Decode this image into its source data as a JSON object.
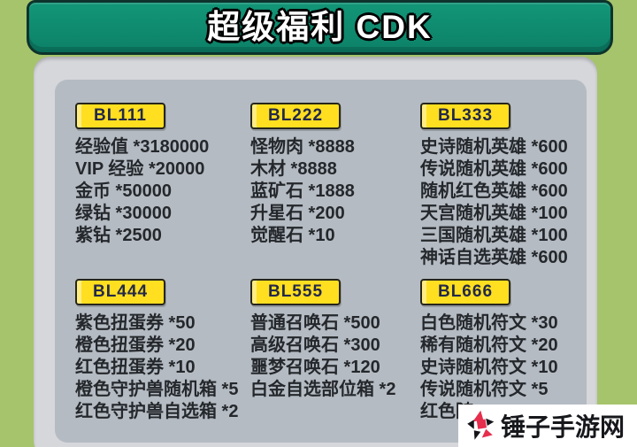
{
  "header": {
    "title": "超级福利 CDK"
  },
  "sections": [
    {
      "code": "BL111",
      "items": [
        "经验值 *3180000",
        "VIP 经验 *20000",
        "金币 *50000",
        "绿钻 *30000",
        "紫钻 *2500"
      ]
    },
    {
      "code": "BL222",
      "items": [
        "怪物肉 *8888",
        "木材 *8888",
        "蓝矿石 *1888",
        "升星石 *200",
        "觉醒石 *10"
      ]
    },
    {
      "code": "BL333",
      "items": [
        "史诗随机英雄 *600",
        "传说随机英雄 *600",
        "随机红色英雄 *600",
        "天宫随机英雄 *100",
        "三国随机英雄 *100",
        "神话自选英雄 *600"
      ]
    },
    {
      "code": "BL444",
      "items": [
        "紫色扭蛋券 *50",
        "橙色扭蛋券 *20",
        "红色扭蛋券 *10",
        "橙色守护兽随机箱 *5",
        "红色守护兽自选箱 *2"
      ]
    },
    {
      "code": "BL555",
      "items": [
        "普通召唤石 *500",
        "高级召唤石 *300",
        "噩梦召唤石 *120",
        "白金自选部位箱 *2"
      ]
    },
    {
      "code": "BL666",
      "items": [
        "白色随机符文 *30",
        "稀有随机符文 *20",
        "史诗随机符文 *10",
        "传说随机符文 *5",
        "红色随"
      ]
    }
  ],
  "watermark": {
    "site_name": "锤子手游网",
    "logo_icon": "star-logo"
  },
  "colors": {
    "background_green": "#a6c46b",
    "banner_teal": "#0e8a6f",
    "card_gray": "#d6d7db",
    "panel_gray": "#b5bbc3",
    "badge_yellow": "#ffdf1f",
    "watermark_red": "#e62e4d",
    "text_dark": "#24282c"
  }
}
